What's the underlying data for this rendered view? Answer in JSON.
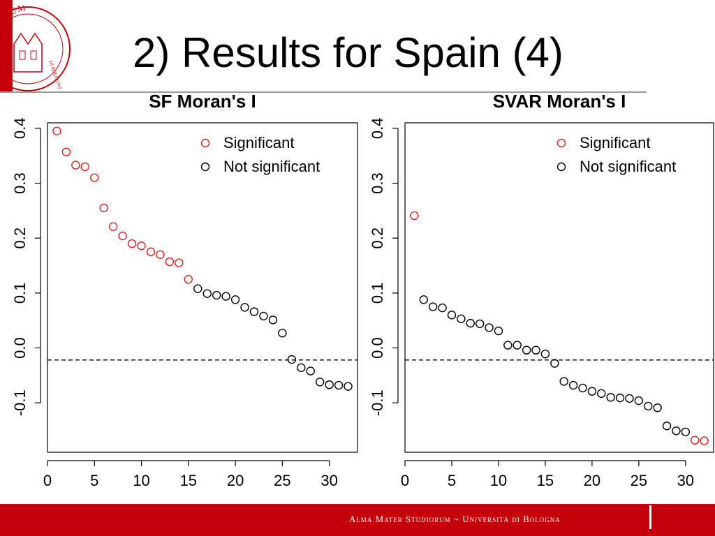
{
  "slide": {
    "title": "2) Results for Spain (4)",
    "footer_text": "Alma Mater Studiorum ~ Università di Bologna",
    "seal_text": "STUDIORUM · DI BOLOGNA",
    "colors": {
      "brand_red": "#c4000a",
      "significant": "#e41a1c",
      "not_significant": "#000000"
    }
  },
  "chart_data": [
    {
      "type": "scatter",
      "title": "SF Moran's I",
      "xlabel": "",
      "ylabel": "",
      "xlim": [
        0,
        33
      ],
      "ylim": [
        -0.19,
        0.41
      ],
      "xticks": [
        0,
        5,
        10,
        15,
        20,
        25,
        30
      ],
      "xtick_labels": [
        "0",
        "5",
        "10",
        "15",
        "20",
        "25",
        "30"
      ],
      "yticks": [
        -0.1,
        0.0,
        0.1,
        0.2,
        0.3,
        0.4
      ],
      "ytick_labels": [
        "-0.1",
        "0.0",
        "0.1",
        "0.2",
        "0.3",
        "0.4"
      ],
      "reference_line": -0.022,
      "legend": {
        "position": "top-right",
        "entries": [
          "Significant",
          "Not significant"
        ]
      },
      "x": [
        1,
        2,
        3,
        4,
        5,
        6,
        7,
        8,
        9,
        10,
        11,
        12,
        13,
        14,
        15,
        16,
        17,
        18,
        19,
        20,
        21,
        22,
        23,
        24,
        25,
        26,
        27,
        28,
        29,
        30,
        31,
        32
      ],
      "y": [
        0.395,
        0.357,
        0.333,
        0.33,
        0.31,
        0.255,
        0.221,
        0.204,
        0.19,
        0.186,
        0.175,
        0.17,
        0.157,
        0.155,
        0.125,
        0.108,
        0.099,
        0.096,
        0.094,
        0.088,
        0.074,
        0.066,
        0.058,
        0.051,
        0.027,
        -0.021,
        -0.036,
        -0.042,
        -0.062,
        -0.067,
        -0.068,
        -0.07
      ],
      "significant": [
        true,
        true,
        true,
        true,
        true,
        true,
        true,
        true,
        true,
        true,
        true,
        true,
        true,
        true,
        true,
        false,
        false,
        false,
        false,
        false,
        false,
        false,
        false,
        false,
        false,
        false,
        false,
        false,
        false,
        false,
        false,
        false
      ]
    },
    {
      "type": "scatter",
      "title": "SVAR Moran's I",
      "xlabel": "",
      "ylabel": "",
      "xlim": [
        0,
        33
      ],
      "ylim": [
        -0.19,
        0.41
      ],
      "xticks": [
        0,
        5,
        10,
        15,
        20,
        25,
        30
      ],
      "xtick_labels": [
        "0",
        "5",
        "10",
        "15",
        "20",
        "25",
        "30"
      ],
      "yticks": [
        -0.1,
        0.0,
        0.1,
        0.2,
        0.3,
        0.4
      ],
      "ytick_labels": [
        "-0.1",
        "0.0",
        "0.1",
        "0.2",
        "0.3",
        "0.4"
      ],
      "reference_line": -0.022,
      "legend": {
        "position": "top-right",
        "entries": [
          "Significant",
          "Not significant"
        ]
      },
      "x": [
        1,
        2,
        3,
        4,
        5,
        6,
        7,
        8,
        9,
        10,
        11,
        12,
        13,
        14,
        15,
        16,
        17,
        18,
        19,
        20,
        21,
        22,
        23,
        24,
        25,
        26,
        27,
        28,
        29,
        30,
        31,
        32
      ],
      "y": [
        0.241,
        0.088,
        0.075,
        0.073,
        0.06,
        0.053,
        0.045,
        0.044,
        0.037,
        0.031,
        0.005,
        0.005,
        -0.004,
        -0.004,
        -0.011,
        -0.028,
        -0.061,
        -0.068,
        -0.073,
        -0.079,
        -0.083,
        -0.09,
        -0.091,
        -0.092,
        -0.096,
        -0.106,
        -0.109,
        -0.142,
        -0.151,
        -0.153,
        -0.168,
        -0.169
      ],
      "significant": [
        true,
        false,
        false,
        false,
        false,
        false,
        false,
        false,
        false,
        false,
        false,
        false,
        false,
        false,
        false,
        false,
        false,
        false,
        false,
        false,
        false,
        false,
        false,
        false,
        false,
        false,
        false,
        false,
        false,
        false,
        true,
        true
      ]
    }
  ]
}
